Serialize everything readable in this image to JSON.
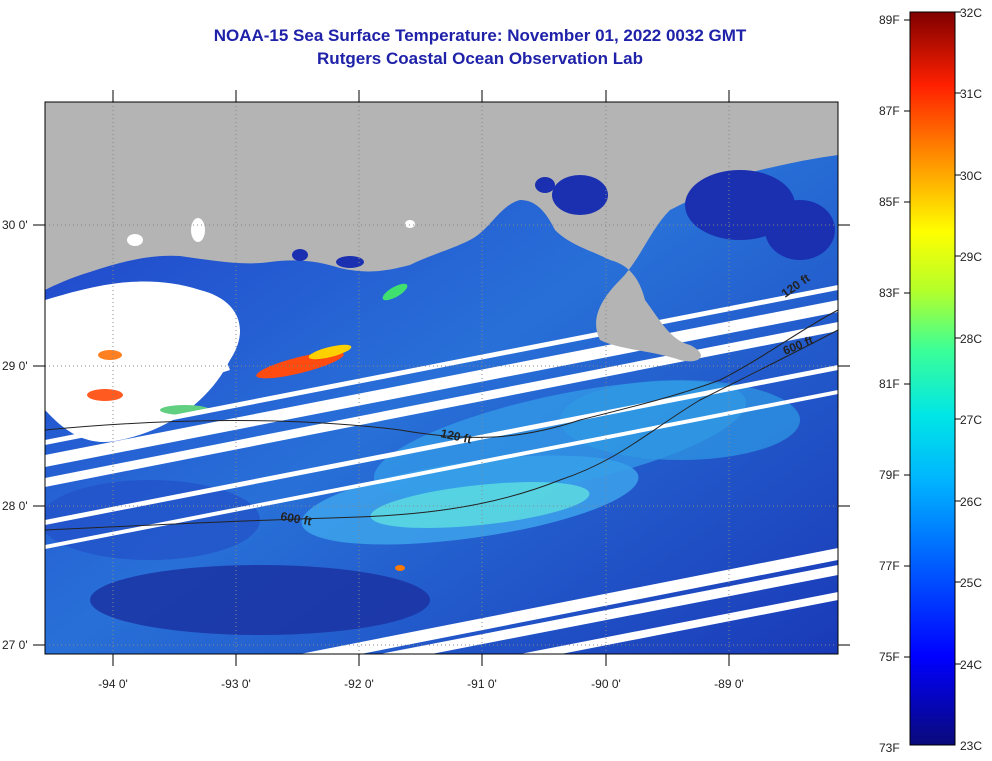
{
  "title": "NOAA-15 Sea Surface Temperature:  November 01, 2022 0032 GMT",
  "subtitle": "Rutgers Coastal Ocean Observation Lab",
  "map": {
    "lon_labels": [
      "-94 0'",
      "-93 0'",
      "-92 0'",
      "-91 0'",
      "-90 0'",
      "-89 0'"
    ],
    "lat_labels": [
      "30 0'",
      "29 0'",
      "28 0'",
      "27 0'"
    ],
    "contours": [
      "120 ft",
      "600 ft",
      "120 ft",
      "600 ft"
    ],
    "colors": {
      "land": "#b4b4b4",
      "cloud": "#ffffff",
      "ocean_deep": "#1d2fb4",
      "ocean_warm": "#2fb0e6"
    }
  },
  "colorbar": {
    "fahrenheit_labels": [
      "89F",
      "87F",
      "85F",
      "83F",
      "81F",
      "79F",
      "77F",
      "75F",
      "73F"
    ],
    "celsius_labels": [
      "32C",
      "31C",
      "30C",
      "29C",
      "28C",
      "27C",
      "26C",
      "25C",
      "24C",
      "23C"
    ],
    "range_celsius": [
      23,
      32
    ],
    "range_fahrenheit": [
      73,
      89
    ]
  }
}
